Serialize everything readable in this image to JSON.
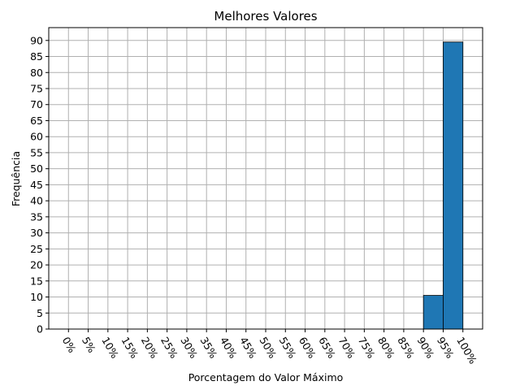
{
  "chart_data": {
    "type": "bar",
    "title": "Melhores Valores",
    "xlabel": "Porcentagem do Valor Máximo",
    "ylabel": "Frequência",
    "categories": [
      "0%",
      "5%",
      "10%",
      "15%",
      "20%",
      "25%",
      "30%",
      "35%",
      "40%",
      "45%",
      "50%",
      "55%",
      "60%",
      "65%",
      "70%",
      "75%",
      "80%",
      "85%",
      "90%",
      "95%",
      "100%"
    ],
    "bins": [
      {
        "from": 90,
        "to": 95,
        "value": 10.5
      },
      {
        "from": 95,
        "to": 100,
        "value": 89.5
      }
    ],
    "y_ticks": [
      0,
      5,
      10,
      15,
      20,
      25,
      30,
      35,
      40,
      45,
      50,
      55,
      60,
      65,
      70,
      75,
      80,
      85,
      90
    ],
    "xlim": [
      -5,
      105
    ],
    "ylim": [
      0,
      94
    ],
    "grid": true,
    "bar_color": "#1f77b4",
    "grid_color": "#b0b0b0"
  }
}
